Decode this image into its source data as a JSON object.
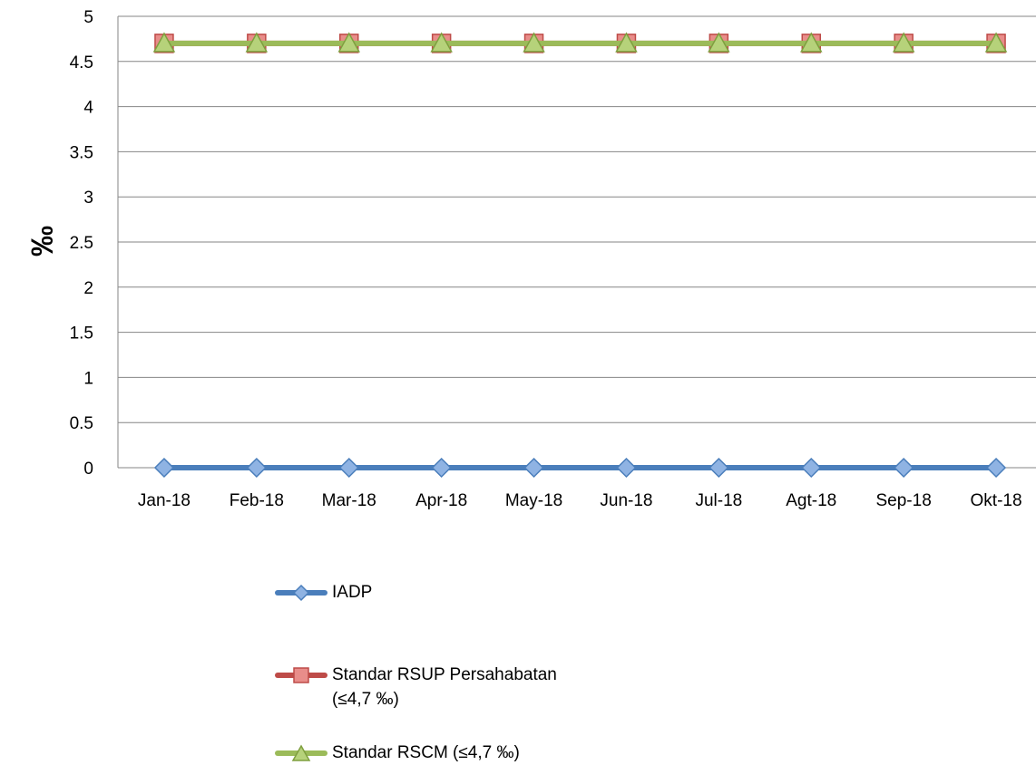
{
  "chart_data": {
    "type": "line",
    "title": "",
    "xlabel": "",
    "ylabel": "‰",
    "categories": [
      "Jan-18",
      "Feb-18",
      "Mar-18",
      "Apr-18",
      "May-18",
      "Jun-18",
      "Jul-18",
      "Agt-18",
      "Sep-18",
      "Okt-18"
    ],
    "ylim": [
      0,
      5
    ],
    "yticks": [
      "0",
      "0.5",
      "1",
      "1.5",
      "2",
      "2.5",
      "3",
      "3.5",
      "4",
      "4.5",
      "5"
    ],
    "grid": true,
    "legend_position": "bottom",
    "series": [
      {
        "name": "IADP",
        "values": [
          0,
          0,
          0,
          0,
          0,
          0,
          0,
          0,
          0,
          0
        ],
        "color": "#4a7ebb",
        "marker": "diamond",
        "marker_fill": "#8fb3e3"
      },
      {
        "name": "Standar RSUP Persahabatan (≤4,7 ‰)",
        "values": [
          4.7,
          4.7,
          4.7,
          4.7,
          4.7,
          4.7,
          4.7,
          4.7,
          4.7,
          4.7
        ],
        "color": "#be4b48",
        "marker": "square",
        "marker_fill": "#e88d8a"
      },
      {
        "name": "Standar RSCM (≤4,7 ‰)",
        "values": [
          4.7,
          4.7,
          4.7,
          4.7,
          4.7,
          4.7,
          4.7,
          4.7,
          4.7,
          4.7
        ],
        "color": "#9bbb59",
        "marker": "triangle",
        "marker_fill": "#b6d27a"
      }
    ]
  },
  "legend": {
    "items": [
      {
        "label_lines": [
          "IADP"
        ]
      },
      {
        "label_lines": [
          "Standar RSUP Persahabatan",
          "(≤4,7 ‰)"
        ]
      },
      {
        "label_lines": [
          "Standar RSCM (≤4,7 ‰)"
        ]
      }
    ]
  }
}
